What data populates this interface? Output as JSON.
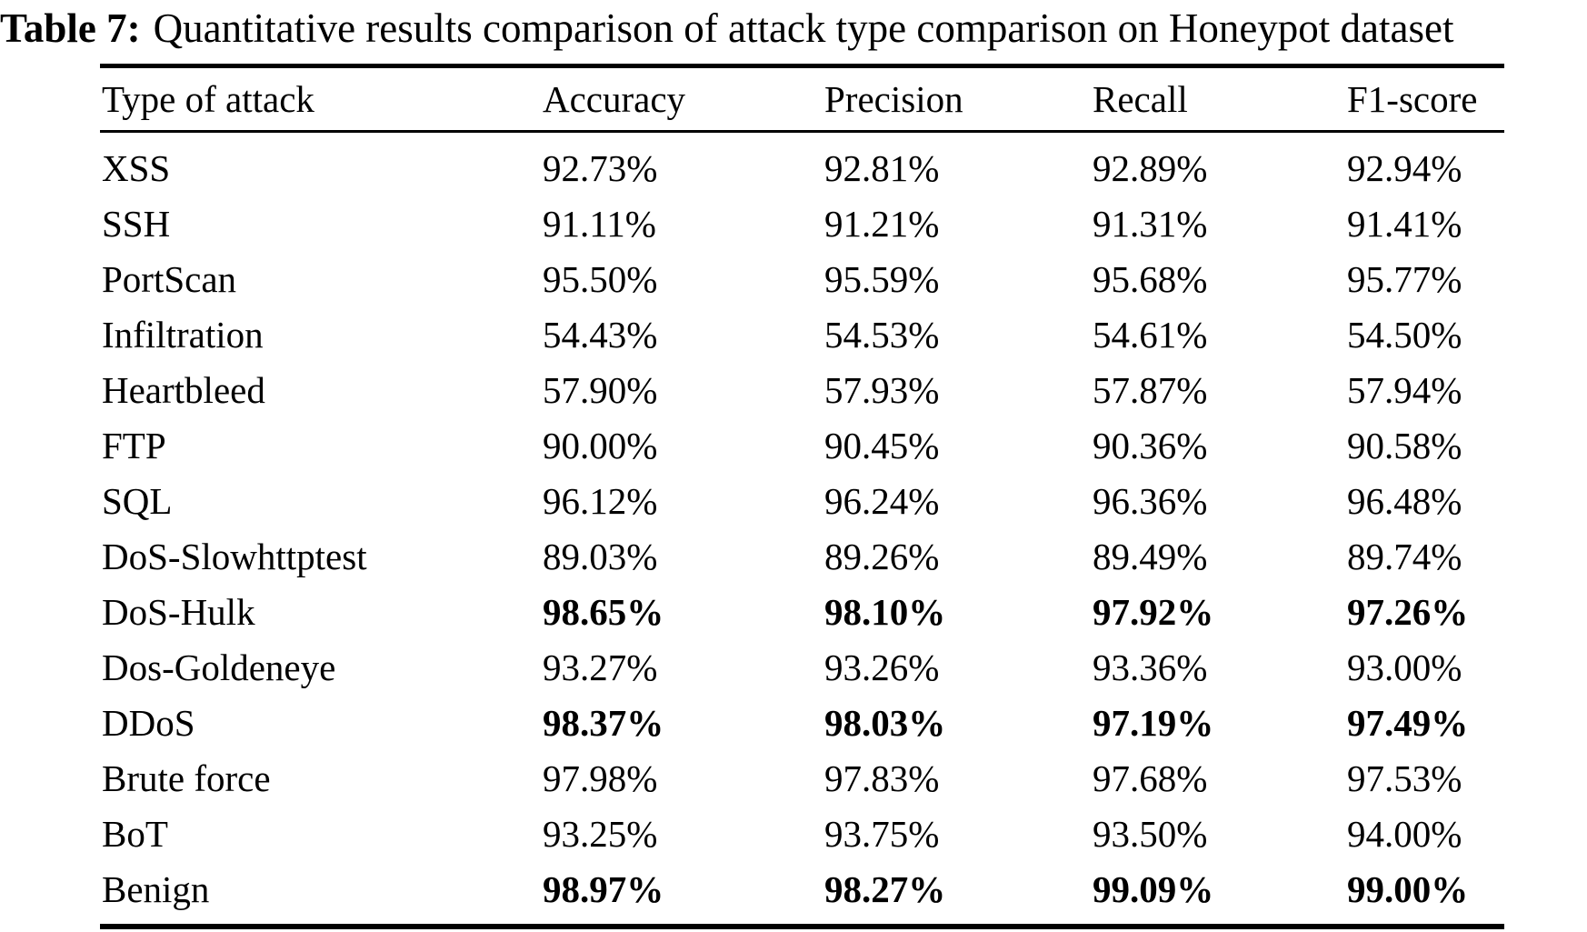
{
  "caption": {
    "label": "Table 7:",
    "text": "Quantitative results comparison of attack type comparison on Honeypot dataset"
  },
  "table": {
    "columns": [
      "Type of attack",
      "Accuracy",
      "Precision",
      "Recall",
      "F1-score"
    ],
    "rows": [
      {
        "cells": [
          "XSS",
          "92.73%",
          "92.81%",
          "92.89%",
          "92.94%"
        ],
        "bold": false
      },
      {
        "cells": [
          "SSH",
          "91.11%",
          "91.21%",
          "91.31%",
          "91.41%"
        ],
        "bold": false
      },
      {
        "cells": [
          "PortScan",
          "95.50%",
          "95.59%",
          "95.68%",
          "95.77%"
        ],
        "bold": false
      },
      {
        "cells": [
          "Infiltration",
          "54.43%",
          "54.53%",
          "54.61%",
          "54.50%"
        ],
        "bold": false
      },
      {
        "cells": [
          "Heartbleed",
          "57.90%",
          "57.93%",
          "57.87%",
          "57.94%"
        ],
        "bold": false
      },
      {
        "cells": [
          "FTP",
          "90.00%",
          "90.45%",
          "90.36%",
          "90.58%"
        ],
        "bold": false
      },
      {
        "cells": [
          "SQL",
          "96.12%",
          "96.24%",
          "96.36%",
          "96.48%"
        ],
        "bold": false
      },
      {
        "cells": [
          "DoS-Slowhttptest",
          "89.03%",
          "89.26%",
          "89.49%",
          "89.74%"
        ],
        "bold": false
      },
      {
        "cells": [
          "DoS-Hulk",
          "98.65%",
          "98.10%",
          "97.92%",
          "97.26%"
        ],
        "bold": true
      },
      {
        "cells": [
          "Dos-Goldeneye",
          "93.27%",
          "93.26%",
          "93.36%",
          "93.00%"
        ],
        "bold": false
      },
      {
        "cells": [
          "DDoS",
          "98.37%",
          "98.03%",
          "97.19%",
          "97.49%"
        ],
        "bold": true
      },
      {
        "cells": [
          "Brute force",
          "97.98%",
          "97.83%",
          "97.68%",
          "97.53%"
        ],
        "bold": false
      },
      {
        "cells": [
          "BoT",
          "93.25%",
          "93.75%",
          "93.50%",
          "94.00%"
        ],
        "bold": false
      },
      {
        "cells": [
          "Benign",
          "98.97%",
          "98.27%",
          "99.09%",
          "99.00%"
        ],
        "bold": true
      }
    ]
  },
  "chart_data": {
    "type": "table",
    "title": "Table 7: Quantitative results comparison of attack type comparison on Honeypot dataset",
    "columns": [
      "Type of attack",
      "Accuracy",
      "Precision",
      "Recall",
      "F1-score"
    ],
    "series": [
      {
        "name": "Accuracy",
        "values": [
          92.73,
          91.11,
          95.5,
          54.43,
          57.9,
          90.0,
          96.12,
          89.03,
          98.65,
          93.27,
          98.37,
          97.98,
          93.25,
          98.97
        ]
      },
      {
        "name": "Precision",
        "values": [
          92.81,
          91.21,
          95.59,
          54.53,
          57.93,
          90.45,
          96.24,
          89.26,
          98.1,
          93.26,
          98.03,
          97.83,
          93.75,
          98.27
        ]
      },
      {
        "name": "Recall",
        "values": [
          92.89,
          91.31,
          95.68,
          54.61,
          57.87,
          90.36,
          96.36,
          89.49,
          97.92,
          93.36,
          97.19,
          97.68,
          93.5,
          99.09
        ]
      },
      {
        "name": "F1-score",
        "values": [
          92.94,
          91.41,
          95.77,
          54.5,
          57.94,
          90.58,
          96.48,
          89.74,
          97.26,
          93.0,
          97.49,
          97.53,
          94.0,
          99.0
        ]
      }
    ],
    "categories": [
      "XSS",
      "SSH",
      "PortScan",
      "Infiltration",
      "Heartbleed",
      "FTP",
      "SQL",
      "DoS-Slowhttptest",
      "DoS-Hulk",
      "Dos-Goldeneye",
      "DDoS",
      "Brute force",
      "BoT",
      "Benign"
    ],
    "bold_rows": [
      "DoS-Hulk",
      "DDoS",
      "Benign"
    ]
  }
}
